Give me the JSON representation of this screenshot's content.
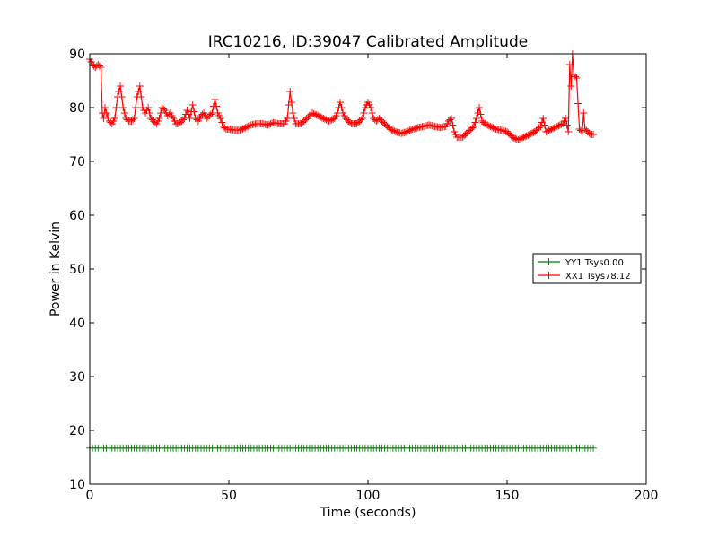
{
  "chart_data": {
    "type": "line",
    "title": "IRC10216, ID:39047 Calibrated Amplitude",
    "xlabel": "Time (seconds)",
    "ylabel": "Power in Kelvin",
    "xlim": [
      0,
      200
    ],
    "ylim": [
      10,
      90
    ],
    "xticks": [
      0,
      50,
      100,
      150,
      200
    ],
    "yticks": [
      10,
      20,
      30,
      40,
      50,
      60,
      70,
      80,
      90
    ],
    "xtick_labels": [
      "0",
      "50",
      "100",
      "150",
      "200"
    ],
    "ytick_labels": [
      "10",
      "20",
      "30",
      "40",
      "50",
      "60",
      "70",
      "80",
      "90"
    ],
    "grid": false,
    "legend_position": "center-right",
    "marker": "+",
    "series": [
      {
        "name": "YY1 Tsys0.00",
        "color": "#008000",
        "x": [
          0,
          5,
          10,
          20,
          30,
          40,
          50,
          60,
          70,
          80,
          90,
          100,
          110,
          120,
          130,
          140,
          150,
          160,
          170,
          175,
          181
        ],
        "y": [
          16.7,
          16.7,
          16.7,
          16.7,
          16.7,
          16.7,
          16.7,
          16.7,
          16.7,
          16.7,
          16.7,
          16.7,
          16.7,
          16.7,
          16.7,
          16.7,
          16.7,
          16.7,
          16.7,
          16.7,
          16.7
        ]
      },
      {
        "name": "XX1 Tsys78.12",
        "color": "#ff0000",
        "x": [
          0,
          1,
          2,
          3,
          4,
          4.5,
          5,
          5.5,
          6,
          7,
          8,
          9,
          10,
          11,
          12,
          13,
          14,
          15,
          16,
          17,
          18,
          19,
          20,
          21,
          22,
          23,
          24,
          25,
          26,
          27,
          28,
          29,
          30,
          31,
          32,
          33,
          34,
          35,
          36,
          37,
          38,
          39,
          40,
          41,
          42,
          43,
          44,
          45,
          46,
          47,
          48,
          49,
          50,
          52,
          54,
          56,
          58,
          60,
          62,
          64,
          66,
          68,
          70,
          71,
          72,
          73,
          74,
          76,
          78,
          80,
          82,
          84,
          86,
          88,
          89,
          90,
          91,
          92,
          94,
          96,
          98,
          99,
          100,
          101,
          102,
          103,
          104,
          106,
          108,
          110,
          112,
          114,
          116,
          118,
          120,
          122,
          124,
          126,
          128,
          129,
          130,
          131,
          132,
          134,
          136,
          138,
          139,
          140,
          141,
          142,
          144,
          146,
          148,
          150,
          152,
          154,
          156,
          158,
          160,
          162,
          163,
          164,
          166,
          168,
          170,
          171,
          172,
          172.5,
          173,
          173.5,
          174,
          175,
          176,
          177,
          177.5,
          178,
          179,
          180,
          181
        ],
        "y": [
          89,
          88,
          87.5,
          88,
          87.5,
          79,
          78,
          80,
          79,
          77.5,
          77,
          78,
          82,
          84,
          80,
          78,
          77.5,
          77.5,
          78,
          82,
          84,
          80,
          79,
          80,
          78,
          77.5,
          77,
          78,
          80,
          79.5,
          78.5,
          79,
          78,
          77,
          77,
          77.5,
          78,
          79.5,
          78,
          80.5,
          78,
          77.5,
          78.5,
          79,
          78,
          78.5,
          79,
          81.5,
          79,
          78,
          76.5,
          76,
          76,
          75.8,
          75.8,
          76.3,
          76.8,
          77,
          77,
          76.8,
          77.2,
          77,
          77,
          78,
          83,
          79,
          77,
          77,
          78,
          79,
          78.5,
          78,
          77.5,
          78,
          79,
          81,
          79,
          78,
          77,
          77,
          78,
          80,
          81,
          80,
          78,
          77.5,
          78,
          77,
          76,
          75.5,
          75.2,
          75.5,
          76,
          76.3,
          76.5,
          76.8,
          76.5,
          76.3,
          76.5,
          77.5,
          78,
          75.5,
          74.5,
          74.5,
          75.5,
          76.5,
          78,
          80,
          77.5,
          77,
          76.5,
          76,
          75.8,
          75.5,
          74.5,
          74,
          74.5,
          75,
          75.5,
          76.5,
          78,
          75.5,
          76,
          76.5,
          77,
          78,
          75.5,
          88,
          84,
          90,
          86,
          85.5,
          76,
          75.5,
          79,
          76,
          75.5,
          75,
          75
        ]
      }
    ]
  }
}
